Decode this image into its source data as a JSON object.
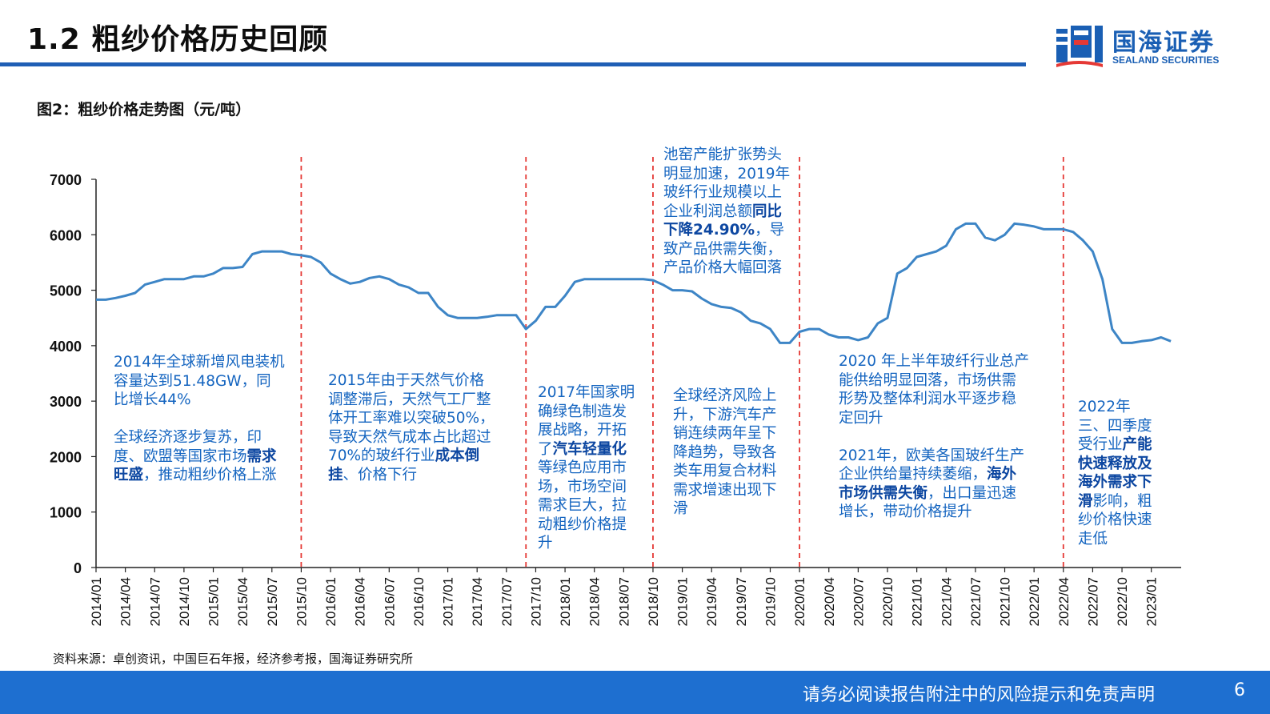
{
  "header": {
    "title": "1.2 粗纱价格历史回顾",
    "logo_name": "国海证券",
    "logo_en": "SEALAND SECURITIES"
  },
  "figure": {
    "caption": "图2：粗纱价格走势图（元/吨）"
  },
  "annotations": [
    {
      "id": "ann-2014",
      "segments": [
        {
          "t": "2014年全球新增风电装机容量达到51.48GW，同比增长44%",
          "b": false
        },
        {
          "t": "\n\n全球经济逐步复苏，印度、欧盟等国家市场",
          "b": false
        },
        {
          "t": "需求旺盛",
          "b": true
        },
        {
          "t": "，推动粗纱价格上涨",
          "b": false
        }
      ]
    },
    {
      "id": "ann-2015",
      "segments": [
        {
          "t": "2015年由于天然气价格调整滞后，天然气工厂整体开工率难以突破50%，导致天然气成本占比超过70%的玻纤行业",
          "b": false
        },
        {
          "t": "成本倒挂",
          "b": true
        },
        {
          "t": "、价格下行",
          "b": false
        }
      ]
    },
    {
      "id": "ann-2017",
      "segments": [
        {
          "t": "2017年国家明确绿色制造发展战略，开拓了",
          "b": false
        },
        {
          "t": "汽车轻量化",
          "b": true
        },
        {
          "t": "等绿色应用市场，市场空间需求巨大，拉动粗纱价格提升",
          "b": false
        }
      ]
    },
    {
      "id": "ann-2018",
      "segments": [
        {
          "t": "池窑产能扩张势头明显加速，2019年玻纤行业规模以上企业利润总额",
          "b": false
        },
        {
          "t": "同比下降24.90%",
          "b": true
        },
        {
          "t": "，导致产品供需失衡，产品价格大幅回落",
          "b": false
        }
      ]
    },
    {
      "id": "ann-2019",
      "segments": [
        {
          "t": "全球经济风险上升，下游汽车产销连续两年呈下降趋势，导致各类车用复合材料需求增速出现下滑",
          "b": false
        }
      ]
    },
    {
      "id": "ann-2020",
      "segments": [
        {
          "t": "2020 年上半年玻纤行业总产能供给明显回落，市场供需形势及整体利润水平逐步稳定回升",
          "b": false
        },
        {
          "t": "\n\n2021年，欧美各国玻纤生产企业供给量持续萎缩，",
          "b": false
        },
        {
          "t": "海外市场供需失衡",
          "b": true
        },
        {
          "t": "，出口量迅速增长，带动价格提升",
          "b": false
        }
      ]
    },
    {
      "id": "ann-2022",
      "segments": [
        {
          "t": "2022年三、四季度受行业",
          "b": false
        },
        {
          "t": "产能快速释放及海外需求下滑",
          "b": true
        },
        {
          "t": "影响，粗纱价格快速走低",
          "b": false
        }
      ]
    }
  ],
  "chart_data": {
    "type": "line",
    "title": "",
    "xlabel": "",
    "ylabel": "",
    "ylim": [
      0,
      7000
    ],
    "yticks": [
      0,
      1000,
      2000,
      3000,
      4000,
      5000,
      6000,
      7000
    ],
    "x_range": [
      "2014/01",
      "2023/03"
    ],
    "xticks": [
      "2014/01",
      "2014/04",
      "2014/07",
      "2014/10",
      "2015/01",
      "2015/04",
      "2015/07",
      "2015/10",
      "2016/01",
      "2016/04",
      "2016/07",
      "2016/10",
      "2017/01",
      "2017/04",
      "2017/07",
      "2017/10",
      "2018/01",
      "2018/04",
      "2018/07",
      "2018/10",
      "2019/01",
      "2019/04",
      "2019/07",
      "2019/10",
      "2020/01",
      "2020/04",
      "2020/07",
      "2020/10",
      "2021/01",
      "2021/04",
      "2021/07",
      "2021/10",
      "2022/01",
      "2022/04",
      "2022/07",
      "2022/10",
      "2023/01"
    ],
    "grid": false,
    "line_color": "#3d85c6",
    "vline_color": "#e53935",
    "vlines": [
      "2015/10",
      "2017/09",
      "2018/10",
      "2020/01",
      "2022/04"
    ],
    "series": [
      {
        "name": "",
        "points": [
          [
            "2014/01",
            4830
          ],
          [
            "2014/02",
            4830
          ],
          [
            "2014/03",
            4860
          ],
          [
            "2014/04",
            4900
          ],
          [
            "2014/05",
            4950
          ],
          [
            "2014/06",
            5100
          ],
          [
            "2014/07",
            5150
          ],
          [
            "2014/08",
            5200
          ],
          [
            "2014/09",
            5200
          ],
          [
            "2014/10",
            5200
          ],
          [
            "2014/11",
            5250
          ],
          [
            "2014/12",
            5250
          ],
          [
            "2015/01",
            5300
          ],
          [
            "2015/02",
            5400
          ],
          [
            "2015/03",
            5400
          ],
          [
            "2015/04",
            5420
          ],
          [
            "2015/05",
            5650
          ],
          [
            "2015/06",
            5700
          ],
          [
            "2015/07",
            5700
          ],
          [
            "2015/08",
            5700
          ],
          [
            "2015/09",
            5650
          ],
          [
            "2015/10",
            5630
          ],
          [
            "2015/11",
            5600
          ],
          [
            "2015/12",
            5500
          ],
          [
            "2016/01",
            5300
          ],
          [
            "2016/02",
            5200
          ],
          [
            "2016/03",
            5120
          ],
          [
            "2016/04",
            5150
          ],
          [
            "2016/05",
            5220
          ],
          [
            "2016/06",
            5250
          ],
          [
            "2016/07",
            5200
          ],
          [
            "2016/08",
            5100
          ],
          [
            "2016/09",
            5050
          ],
          [
            "2016/10",
            4950
          ],
          [
            "2016/11",
            4950
          ],
          [
            "2016/12",
            4700
          ],
          [
            "2017/01",
            4550
          ],
          [
            "2017/02",
            4500
          ],
          [
            "2017/03",
            4500
          ],
          [
            "2017/04",
            4500
          ],
          [
            "2017/05",
            4520
          ],
          [
            "2017/06",
            4550
          ],
          [
            "2017/07",
            4550
          ],
          [
            "2017/08",
            4550
          ],
          [
            "2017/09",
            4300
          ],
          [
            "2017/10",
            4450
          ],
          [
            "2017/11",
            4700
          ],
          [
            "2017/12",
            4700
          ],
          [
            "2018/01",
            4900
          ],
          [
            "2018/02",
            5150
          ],
          [
            "2018/03",
            5200
          ],
          [
            "2018/04",
            5200
          ],
          [
            "2018/05",
            5200
          ],
          [
            "2018/06",
            5200
          ],
          [
            "2018/07",
            5200
          ],
          [
            "2018/08",
            5200
          ],
          [
            "2018/09",
            5200
          ],
          [
            "2018/10",
            5180
          ],
          [
            "2018/11",
            5100
          ],
          [
            "2018/12",
            5000
          ],
          [
            "2019/01",
            5000
          ],
          [
            "2019/02",
            4980
          ],
          [
            "2019/03",
            4850
          ],
          [
            "2019/04",
            4750
          ],
          [
            "2019/05",
            4700
          ],
          [
            "2019/06",
            4680
          ],
          [
            "2019/07",
            4600
          ],
          [
            "2019/08",
            4450
          ],
          [
            "2019/09",
            4400
          ],
          [
            "2019/10",
            4300
          ],
          [
            "2019/11",
            4050
          ],
          [
            "2019/12",
            4050
          ],
          [
            "2020/01",
            4250
          ],
          [
            "2020/02",
            4300
          ],
          [
            "2020/03",
            4300
          ],
          [
            "2020/04",
            4200
          ],
          [
            "2020/05",
            4150
          ],
          [
            "2020/06",
            4150
          ],
          [
            "2020/07",
            4100
          ],
          [
            "2020/08",
            4150
          ],
          [
            "2020/09",
            4400
          ],
          [
            "2020/10",
            4500
          ],
          [
            "2020/11",
            5300
          ],
          [
            "2020/12",
            5400
          ],
          [
            "2021/01",
            5600
          ],
          [
            "2021/02",
            5650
          ],
          [
            "2021/03",
            5700
          ],
          [
            "2021/04",
            5800
          ],
          [
            "2021/05",
            6100
          ],
          [
            "2021/06",
            6200
          ],
          [
            "2021/07",
            6200
          ],
          [
            "2021/08",
            5950
          ],
          [
            "2021/09",
            5900
          ],
          [
            "2021/10",
            6000
          ],
          [
            "2021/11",
            6200
          ],
          [
            "2021/12",
            6180
          ],
          [
            "2022/01",
            6150
          ],
          [
            "2022/02",
            6100
          ],
          [
            "2022/03",
            6100
          ],
          [
            "2022/04",
            6100
          ],
          [
            "2022/05",
            6050
          ],
          [
            "2022/06",
            5900
          ],
          [
            "2022/07",
            5700
          ],
          [
            "2022/08",
            5200
          ],
          [
            "2022/09",
            4300
          ],
          [
            "2022/10",
            4050
          ],
          [
            "2022/11",
            4050
          ],
          [
            "2022/12",
            4080
          ],
          [
            "2023/01",
            4100
          ],
          [
            "2023/02",
            4150
          ],
          [
            "2023/03",
            4080
          ]
        ]
      }
    ]
  },
  "source": "资料来源：卓创资讯，中国巨石年报，经济参考报，国海证券研究所",
  "footer": {
    "disclaimer": "请务必阅读报告附注中的风险提示和免责声明",
    "page": "6"
  }
}
